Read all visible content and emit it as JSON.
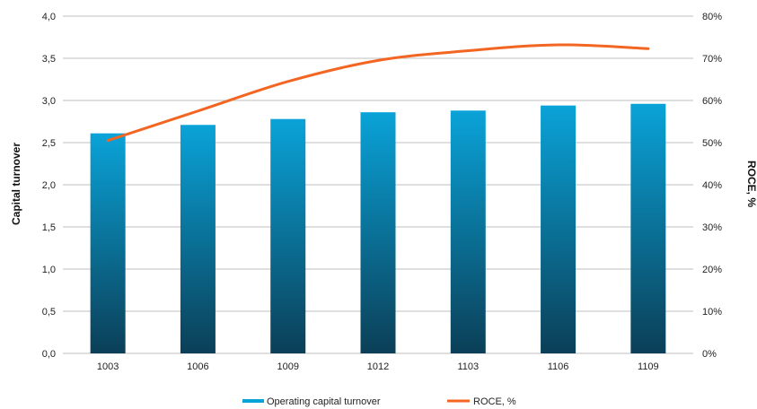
{
  "chart_data": {
    "type": "bar",
    "categories": [
      "1003",
      "1006",
      "1009",
      "1012",
      "1103",
      "1106",
      "1109"
    ],
    "series": [
      {
        "name": "Operating capital turnover",
        "type": "bar",
        "axis": "left",
        "values": [
          2.61,
          2.71,
          2.78,
          2.86,
          2.88,
          2.94,
          2.96
        ]
      },
      {
        "name": "ROCE, %",
        "type": "line",
        "axis": "right",
        "values": [
          50.5,
          57.5,
          64.5,
          69.5,
          71.8,
          73.2,
          72.3
        ]
      }
    ],
    "ylabel": "Capital turnover",
    "ylabel_right": "ROCE, %",
    "ylim": [
      0,
      4
    ],
    "ylim_right": [
      0,
      80
    ],
    "yticks": [
      "0,0",
      "0,5",
      "1,0",
      "1,5",
      "2,0",
      "2,5",
      "3,0",
      "3,5",
      "4,0"
    ],
    "yticks_right": [
      "0%",
      "10%",
      "20%",
      "30%",
      "40%",
      "50%",
      "60%",
      "70%",
      "80%"
    ],
    "grid": true,
    "legend_position": "bottom",
    "colors": {
      "bar_top": "#0aa3d8",
      "bar_bottom": "#0b3f57",
      "line": "#f26522",
      "grid": "#bfbfbf"
    }
  }
}
